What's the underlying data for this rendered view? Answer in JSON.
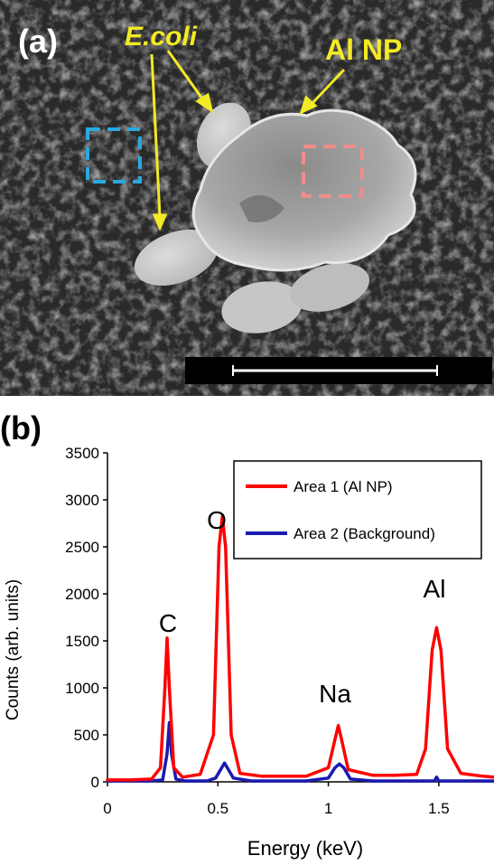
{
  "panel_a": {
    "label": "(a)",
    "annotations": {
      "ecoli": "E.coli",
      "al_np": "Al NP"
    },
    "colors": {
      "annotation": "#f3ea25",
      "area1_box": "#f08c8c",
      "area2_box": "#29a9e0",
      "scale_bar": "#ffffff"
    }
  },
  "panel_b": {
    "label": "(b)",
    "peaks": [
      "C",
      "O",
      "Na",
      "Al"
    ]
  },
  "chart_data": {
    "type": "line",
    "xlabel": "Energy (keV)",
    "ylabel": "Counts (arb. units)",
    "xlim": [
      0,
      1.75
    ],
    "ylim": [
      0,
      3500
    ],
    "xticks": [
      0,
      0.5,
      1,
      1.5
    ],
    "xtick_labels": [
      "0",
      "0.5",
      "1",
      "1.5"
    ],
    "yticks": [
      0,
      500,
      1000,
      1500,
      2000,
      2500,
      3000,
      3500
    ],
    "ytick_labels": [
      "0",
      "500",
      "1000",
      "1500",
      "2000",
      "2500",
      "3000",
      "3500"
    ],
    "grid": false,
    "legend": "top-right",
    "series": [
      {
        "name": "Area 1 (Al NP)",
        "color": "#ff0000",
        "x": [
          0,
          0.1,
          0.2,
          0.24,
          0.26,
          0.27,
          0.28,
          0.3,
          0.34,
          0.42,
          0.48,
          0.505,
          0.52,
          0.535,
          0.56,
          0.6,
          0.7,
          0.8,
          0.9,
          1.0,
          1.03,
          1.045,
          1.06,
          1.09,
          1.2,
          1.3,
          1.4,
          1.44,
          1.47,
          1.49,
          1.51,
          1.54,
          1.6,
          1.7,
          1.75
        ],
        "y": [
          20,
          20,
          30,
          150,
          1000,
          1530,
          1000,
          150,
          50,
          80,
          500,
          2500,
          2820,
          2500,
          500,
          90,
          60,
          60,
          60,
          150,
          450,
          600,
          450,
          130,
          70,
          70,
          80,
          350,
          1400,
          1640,
          1400,
          350,
          90,
          60,
          50
        ]
      },
      {
        "name": "Area 2 (Background)",
        "color": "#1a1ab0",
        "x": [
          0,
          0.2,
          0.25,
          0.27,
          0.28,
          0.29,
          0.31,
          0.35,
          0.45,
          0.49,
          0.53,
          0.57,
          0.65,
          0.9,
          1.0,
          1.03,
          1.05,
          1.07,
          1.1,
          1.2,
          1.4,
          1.48,
          1.49,
          1.5,
          1.6,
          1.75
        ],
        "y": [
          10,
          10,
          20,
          300,
          630,
          300,
          30,
          10,
          10,
          40,
          200,
          40,
          10,
          10,
          40,
          150,
          190,
          150,
          30,
          10,
          10,
          10,
          50,
          10,
          10,
          10
        ]
      }
    ]
  }
}
